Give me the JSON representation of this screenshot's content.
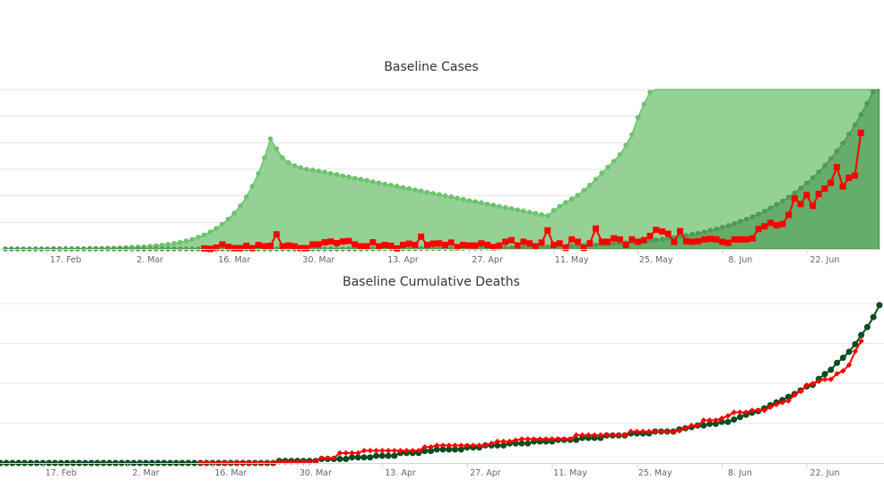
{
  "chart_data": [
    {
      "type": "area",
      "title": "Baseline Cases",
      "xlabel": "",
      "ylabel": "",
      "x_start": "2020-02-07",
      "x_step_days": 1,
      "x_tick_labels": [
        "17. Feb",
        "2. Mar",
        "16. Mar",
        "30. Mar",
        "13. Apr",
        "27. Apr",
        "11. May",
        "25. May",
        "8. Jun",
        "22. Jun"
      ],
      "x_tick_days": [
        10,
        24,
        38,
        52,
        66,
        80,
        94,
        108,
        122,
        136
      ],
      "y_units": "gridline units (y-axis labels not visible)",
      "ylim": [
        0,
        6
      ],
      "grid": true,
      "legend": "none",
      "series": [
        {
          "key": "light_area",
          "kind": "area",
          "color": "#6cc46c",
          "fill": "#95d195",
          "start_day": 0,
          "values": [
            0,
            0,
            0,
            0,
            0,
            0,
            0,
            0,
            0.01,
            0.01,
            0.01,
            0.01,
            0.01,
            0.01,
            0.02,
            0.02,
            0.02,
            0.03,
            0.03,
            0.04,
            0.05,
            0.06,
            0.07,
            0.08,
            0.1,
            0.12,
            0.14,
            0.17,
            0.21,
            0.25,
            0.3,
            0.36,
            0.44,
            0.53,
            0.64,
            0.77,
            0.93,
            1.12,
            1.35,
            1.62,
            1.96,
            2.36,
            2.84,
            3.43,
            4.14,
            3.77,
            3.43,
            3.25,
            3.13,
            3.06,
            3.0,
            2.97,
            2.93,
            2.89,
            2.84,
            2.8,
            2.75,
            2.71,
            2.66,
            2.62,
            2.58,
            2.53,
            2.49,
            2.44,
            2.4,
            2.36,
            2.31,
            2.27,
            2.22,
            2.18,
            2.13,
            2.09,
            2.05,
            2.0,
            1.96,
            1.91,
            1.87,
            1.82,
            1.78,
            1.74,
            1.69,
            1.65,
            1.6,
            1.56,
            1.52,
            1.47,
            1.43,
            1.38,
            1.34,
            1.29,
            1.25,
            1.45,
            1.6,
            1.75,
            1.88,
            2.02,
            2.2,
            2.4,
            2.62,
            2.86,
            3.08,
            3.3,
            3.55,
            3.9,
            4.3,
            4.95,
            5.45,
            5.9,
            null,
            null,
            null,
            null,
            null,
            null,
            null,
            null,
            null,
            null,
            null,
            null,
            null,
            null,
            null,
            null,
            null,
            null,
            null,
            null,
            null,
            null,
            null,
            null,
            null,
            null,
            null,
            null,
            null,
            null,
            null,
            null,
            null,
            null,
            null,
            null,
            null,
            null
          ]
        },
        {
          "key": "dark_area",
          "kind": "area",
          "color": "#4f9a55",
          "fill": "#64ad6a",
          "start_day": 0,
          "values": [
            0,
            0,
            0,
            0,
            0,
            0,
            0,
            0,
            0,
            0,
            0,
            0,
            0,
            0,
            0,
            0,
            0,
            0,
            0,
            0,
            0,
            0,
            0,
            0,
            0,
            0,
            0,
            0,
            0,
            0,
            0,
            0,
            0,
            0,
            0,
            0,
            0,
            0,
            0,
            0,
            0,
            0,
            0,
            0,
            0,
            0,
            0,
            0,
            0,
            0,
            0,
            0,
            0,
            0,
            0,
            0,
            0,
            0,
            0,
            0,
            0.01,
            0.01,
            0.01,
            0.01,
            0.01,
            0.01,
            0.01,
            0.01,
            0.01,
            0.02,
            0.02,
            0.02,
            0.02,
            0.02,
            0.02,
            0.03,
            0.03,
            0.03,
            0.03,
            0.03,
            0.04,
            0.04,
            0.04,
            0.05,
            0.05,
            0.06,
            0.06,
            0.06,
            0.07,
            0.08,
            0.08,
            0.09,
            0.1,
            0.1,
            0.11,
            0.12,
            0.13,
            0.14,
            0.15,
            0.17,
            0.18,
            0.2,
            0.21,
            0.23,
            0.25,
            0.27,
            0.29,
            0.32,
            0.34,
            0.37,
            0.4,
            0.43,
            0.47,
            0.51,
            0.55,
            0.59,
            0.64,
            0.7,
            0.75,
            0.82,
            0.88,
            0.96,
            1.04,
            1.12,
            1.21,
            1.31,
            1.42,
            1.54,
            1.67,
            1.8,
            1.95,
            2.11,
            2.29,
            2.48,
            2.68,
            2.9,
            3.14,
            3.4,
            3.68,
            3.98,
            4.31,
            4.67,
            5.05,
            5.47,
            5.92,
            6.41
          ]
        },
        {
          "key": "red_line",
          "kind": "line-square",
          "color": "#ff0000",
          "start_day": 33,
          "values": [
            0.02,
            0.0,
            0.05,
            0.17,
            0.08,
            0.03,
            0.03,
            0.12,
            0.03,
            0.15,
            0.1,
            0.12,
            0.55,
            0.1,
            0.13,
            0.1,
            0.03,
            0.03,
            0.17,
            0.17,
            0.25,
            0.28,
            0.22,
            0.28,
            0.3,
            0.17,
            0.1,
            0.1,
            0.25,
            0.1,
            0.15,
            0.12,
            0.02,
            0.15,
            0.2,
            0.15,
            0.46,
            0.15,
            0.2,
            0.21,
            0.15,
            0.24,
            0.07,
            0.15,
            0.13,
            0.13,
            0.21,
            0.15,
            0.07,
            0.13,
            0.27,
            0.33,
            0.13,
            0.27,
            0.21,
            0.1,
            0.24,
            0.7,
            0.15,
            0.21,
            0.04,
            0.36,
            0.27,
            0.04,
            0.21,
            0.77,
            0.27,
            0.27,
            0.4,
            0.36,
            0.15,
            0.36,
            0.27,
            0.33,
            0.49,
            0.72,
            0.66,
            0.57,
            0.27,
            0.67,
            0.29,
            0.27,
            0.29,
            0.36,
            0.38,
            0.36,
            0.27,
            0.23,
            0.36,
            0.36,
            0.36,
            0.4,
            0.75,
            0.85,
            0.98,
            0.89,
            0.94,
            1.28,
            1.9,
            1.69,
            2.03,
            1.62,
            2.07,
            2.27,
            2.49,
            3.08,
            2.35,
            2.68,
            2.76,
            4.37
          ]
        }
      ]
    },
    {
      "type": "line",
      "title": "Baseline Cumulative Deaths",
      "xlabel": "",
      "ylabel": "",
      "x_start": "2020-02-07",
      "x_step_days": 1,
      "x_tick_labels": [
        "17. Feb",
        "2. Mar",
        "16. Mar",
        "30. Mar",
        "13. Apr",
        "27. Apr",
        "11. May",
        "25. May",
        "8. Jun",
        "22. Jun"
      ],
      "x_tick_days": [
        10,
        24,
        38,
        52,
        66,
        80,
        94,
        108,
        122,
        136
      ],
      "y_units": "gridline units (y-axis labels not visible)",
      "ylim": [
        0,
        4
      ],
      "grid": true,
      "legend": "none",
      "series": [
        {
          "key": "green_line",
          "kind": "line-circle",
          "color": "#0b4d1e",
          "start_day": 0,
          "values": [
            0,
            0,
            0,
            0,
            0,
            0,
            0,
            0,
            0,
            0,
            0,
            0,
            0,
            0,
            0,
            0,
            0,
            0,
            0,
            0,
            0,
            0,
            0,
            0,
            0,
            0,
            0,
            0,
            0,
            0,
            0,
            0,
            0,
            0,
            0,
            0,
            0,
            0,
            0,
            0,
            0,
            0,
            0,
            0,
            0,
            0,
            0.05,
            0.05,
            0.05,
            0.05,
            0.05,
            0.05,
            0.05,
            0.1,
            0.1,
            0.1,
            0.1,
            0.1,
            0.14,
            0.14,
            0.14,
            0.14,
            0.18,
            0.18,
            0.18,
            0.18,
            0.25,
            0.25,
            0.25,
            0.25,
            0.3,
            0.3,
            0.34,
            0.34,
            0.34,
            0.34,
            0.34,
            0.39,
            0.39,
            0.39,
            0.44,
            0.44,
            0.44,
            0.44,
            0.49,
            0.49,
            0.49,
            0.49,
            0.54,
            0.54,
            0.54,
            0.54,
            0.58,
            0.58,
            0.58,
            0.58,
            0.63,
            0.63,
            0.63,
            0.63,
            0.69,
            0.69,
            0.69,
            0.69,
            0.74,
            0.74,
            0.74,
            0.74,
            0.79,
            0.79,
            0.79,
            0.79,
            0.84,
            0.87,
            0.9,
            0.94,
            0.94,
            0.98,
            0.98,
            1.03,
            1.03,
            1.09,
            1.15,
            1.21,
            1.26,
            1.3,
            1.37,
            1.45,
            1.52,
            1.58,
            1.66,
            1.73,
            1.82,
            1.92,
            1.96,
            2.11,
            2.23,
            2.34,
            2.51,
            2.64,
            2.79,
            2.98,
            3.21,
            3.41,
            3.66,
            3.96
          ]
        },
        {
          "key": "red_line",
          "kind": "line-diamond",
          "color": "#ff0000",
          "start_day": 33,
          "values": [
            0,
            0,
            0,
            0,
            0,
            0,
            0,
            0,
            0,
            0,
            0,
            0,
            0,
            0.03,
            0.03,
            0.03,
            0.03,
            0.03,
            0.03,
            0.05,
            0.12,
            0.12,
            0.12,
            0.25,
            0.25,
            0.25,
            0.25,
            0.31,
            0.31,
            0.31,
            0.31,
            0.31,
            0.31,
            0.31,
            0.31,
            0.31,
            0.31,
            0.4,
            0.4,
            0.44,
            0.44,
            0.44,
            0.44,
            0.44,
            0.44,
            0.44,
            0.44,
            0.44,
            0.49,
            0.54,
            0.54,
            0.54,
            0.57,
            0.6,
            0.6,
            0.6,
            0.6,
            0.6,
            0.6,
            0.6,
            0.6,
            0.6,
            0.7,
            0.7,
            0.7,
            0.7,
            0.7,
            0.7,
            0.7,
            0.7,
            0.7,
            0.79,
            0.79,
            0.79,
            0.79,
            0.79,
            0.79,
            0.79,
            0.79,
            0.81,
            0.87,
            0.94,
            0.94,
            1.07,
            1.07,
            1.07,
            1.12,
            1.18,
            1.27,
            1.27,
            1.27,
            1.32,
            1.32,
            1.32,
            1.4,
            1.47,
            1.52,
            1.56,
            1.71,
            1.8,
            1.95,
            1.99,
            2.05,
            2.1,
            2.1,
            2.24,
            2.31,
            2.46,
            2.8,
            3.06
          ]
        }
      ]
    }
  ],
  "colors": {
    "grid": "#e6e6e6",
    "axis": "#ccd6eb",
    "title": "#333333",
    "tick_label": "#666666"
  }
}
